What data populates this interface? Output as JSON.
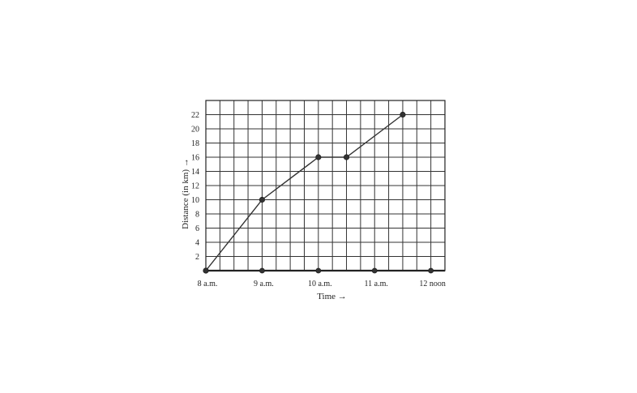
{
  "chart_data": {
    "type": "line",
    "title": "",
    "xlabel": "Time →",
    "ylabel": "Distance (in km) →",
    "x_categories": [
      "8 a.m.",
      "9 a.m.",
      "10 a.m.",
      "11 a.m.",
      "12 noon"
    ],
    "xlim": [
      0,
      4.25
    ],
    "ylim": [
      0,
      24
    ],
    "yticks": [
      2,
      4,
      6,
      8,
      10,
      12,
      14,
      16,
      18,
      20,
      22
    ],
    "grid": true,
    "series": [
      {
        "x": [
          0,
          1,
          2,
          2.5,
          3.5
        ],
        "y": [
          0,
          10,
          16,
          16,
          22
        ]
      }
    ],
    "axis_markers": [
      0,
      1,
      2,
      3,
      4
    ]
  }
}
